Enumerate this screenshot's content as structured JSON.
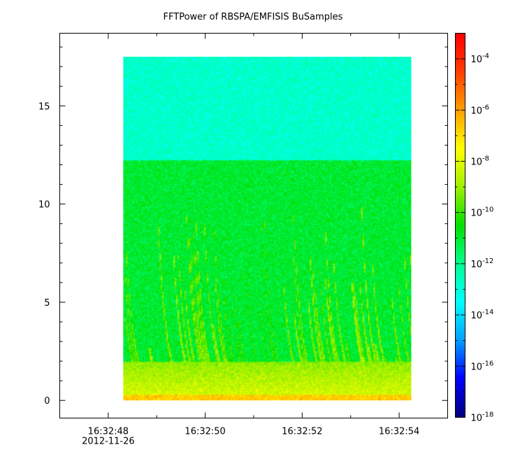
{
  "chart_data": {
    "type": "heatmap",
    "title": "FFTPower of RBSPA/EMFISIS  BuSamples",
    "xlabel": "",
    "ylabel": "",
    "x_axis": {
      "type": "time",
      "range": [
        "16:32:47.0",
        "16:32:55.0"
      ],
      "ticks": [
        {
          "value": "16:32:48",
          "label": "16:32:48",
          "sublabel": "2012-11-26"
        },
        {
          "value": "16:32:50",
          "label": "16:32:50"
        },
        {
          "value": "16:32:52",
          "label": "16:32:52"
        },
        {
          "value": "16:32:54",
          "label": "16:32:54"
        }
      ],
      "minor_tick_seconds": 1
    },
    "y_axis": {
      "range": [
        -0.9,
        18.7
      ],
      "ticks": [
        0,
        5,
        10,
        15
      ],
      "minor_step": 1
    },
    "data_extent": {
      "x": [
        "16:32:48.31",
        "16:32:54.25"
      ],
      "y": [
        0,
        17.5
      ]
    },
    "colorbar": {
      "scale": "log",
      "range": [
        1e-18,
        0.001
      ],
      "tick_exponents": [
        -18,
        -16,
        -14,
        -12,
        -10,
        -8,
        -6,
        -4
      ],
      "tick_base": "10",
      "colors": [
        "#00007f",
        "#0000ff",
        "#00a0ff",
        "#00ffff",
        "#00ff90",
        "#00e000",
        "#a0f000",
        "#ffff00",
        "#ffa000",
        "#ff4000",
        "#ff0000"
      ]
    },
    "power_structure": {
      "noise_floor_upper_exponent": -12.8,
      "noise_floor_lower_exponent": -11.0,
      "floor_step_freq": 12.2,
      "low_freq_band_exponent": -8.0,
      "baseline_exponent": -6.7,
      "chorus_exponent": -8.8,
      "quiet_interval": [
        "16:32:50.3",
        "16:32:51.3"
      ]
    },
    "legend": "colorbar-right",
    "grid": false
  }
}
